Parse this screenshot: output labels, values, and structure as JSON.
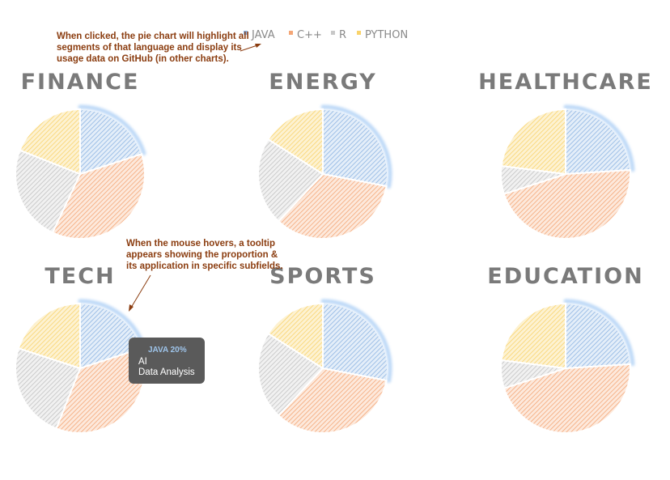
{
  "annotations": {
    "click": "When clicked, the pie chart will highlight all segments of that language and display its usage data on GitHub (in other charts).",
    "hover": "When the mouse hovers, a tooltip appears showing the proportion & its application in specific subfields."
  },
  "tooltip": {
    "header": "JAVA 20%",
    "lines": [
      "AI",
      "Data Analysis"
    ]
  },
  "colors": {
    "JAVA": "#8db4e2",
    "C++": "#f4a676",
    "R": "#c8c8c8",
    "PYTHON": "#f9d36b",
    "highlight": "#bcd8f7"
  },
  "chart_data": {
    "type": "pie",
    "legend": [
      "JAVA",
      "C++",
      "R",
      "PYTHON"
    ],
    "legend_position": "top",
    "highlighted_series": "JAVA",
    "charts": [
      {
        "title": "FINANCE",
        "values": [
          20,
          37,
          24,
          19
        ]
      },
      {
        "title": "ENERGY",
        "values": [
          28,
          34,
          22,
          16
        ]
      },
      {
        "title": "HEALTHCARE",
        "values": [
          24,
          46,
          7,
          23
        ]
      },
      {
        "title": "TECH",
        "values": [
          20,
          36,
          24,
          20
        ]
      },
      {
        "title": "SPORTS",
        "values": [
          28,
          34,
          22,
          16
        ]
      },
      {
        "title": "EDUCATION",
        "values": [
          24,
          46,
          7,
          23
        ]
      }
    ]
  }
}
